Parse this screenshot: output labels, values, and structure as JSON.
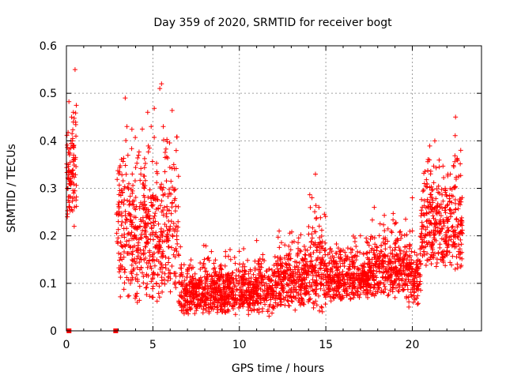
{
  "chart_data": {
    "type": "scatter",
    "title": "Day 359 of 2020, SRMTID for receiver bogt",
    "xlabel": "GPS time / hours",
    "ylabel": "SRMTID / TECUs",
    "xlim": [
      0,
      24
    ],
    "ylim": [
      0,
      0.6
    ],
    "xticks": [
      0,
      5,
      10,
      15,
      20
    ],
    "yticks": [
      0,
      0.1,
      0.2,
      0.3,
      0.4,
      0.5,
      0.6
    ],
    "xtick_labels": [
      "0",
      "5",
      "10",
      "15",
      "20"
    ],
    "ytick_labels": [
      "0",
      "0.1",
      "0.2",
      "0.3",
      "0.4",
      "0.5",
      "0.6"
    ],
    "grid": true,
    "marker": "+",
    "color": "#ff0000",
    "zero_markers": [
      {
        "x": 0.15,
        "y": 0
      },
      {
        "x": 2.85,
        "y": 0
      }
    ],
    "series": [
      {
        "name": "SRMTID",
        "envelope_segments": [
          {
            "x_start": 0.0,
            "x_end": 0.6,
            "low": 0.22,
            "high": 0.55
          },
          {
            "x_start": 2.9,
            "x_end": 6.5,
            "low": 0.06,
            "high": 0.52
          },
          {
            "x_start": 6.5,
            "x_end": 12.0,
            "low": 0.03,
            "high": 0.19
          },
          {
            "x_start": 12.0,
            "x_end": 14.0,
            "low": 0.04,
            "high": 0.24
          },
          {
            "x_start": 14.0,
            "x_end": 15.0,
            "low": 0.04,
            "high": 0.33
          },
          {
            "x_start": 15.0,
            "x_end": 17.5,
            "low": 0.06,
            "high": 0.22
          },
          {
            "x_start": 17.5,
            "x_end": 19.5,
            "low": 0.07,
            "high": 0.26
          },
          {
            "x_start": 19.5,
            "x_end": 20.5,
            "low": 0.05,
            "high": 0.28
          },
          {
            "x_start": 20.5,
            "x_end": 22.9,
            "low": 0.12,
            "high": 0.45
          }
        ],
        "sample_points": [
          [
            0.05,
            0.3
          ],
          [
            0.1,
            0.35
          ],
          [
            0.15,
            0.26
          ],
          [
            0.2,
            0.31
          ],
          [
            0.3,
            0.45
          ],
          [
            0.35,
            0.4
          ],
          [
            0.4,
            0.46
          ],
          [
            0.45,
            0.22
          ],
          [
            0.5,
            0.55
          ],
          [
            0.55,
            0.41
          ],
          [
            3.0,
            0.23
          ],
          [
            3.2,
            0.2
          ],
          [
            3.4,
            0.49
          ],
          [
            3.5,
            0.43
          ],
          [
            3.7,
            0.1
          ],
          [
            3.9,
            0.13
          ],
          [
            4.1,
            0.06
          ],
          [
            4.3,
            0.33
          ],
          [
            4.5,
            0.3
          ],
          [
            4.7,
            0.46
          ],
          [
            4.9,
            0.43
          ],
          [
            5.0,
            0.15
          ],
          [
            5.2,
            0.1
          ],
          [
            5.4,
            0.51
          ],
          [
            5.5,
            0.52
          ],
          [
            5.6,
            0.43
          ],
          [
            5.8,
            0.24
          ],
          [
            6.0,
            0.12
          ],
          [
            6.2,
            0.16
          ],
          [
            6.4,
            0.21
          ],
          [
            7.0,
            0.12
          ],
          [
            7.5,
            0.05
          ],
          [
            8.0,
            0.09
          ],
          [
            8.5,
            0.13
          ],
          [
            9.0,
            0.04
          ],
          [
            9.5,
            0.15
          ],
          [
            10.0,
            0.1
          ],
          [
            10.5,
            0.05
          ],
          [
            11.0,
            0.19
          ],
          [
            11.5,
            0.07
          ],
          [
            12.0,
            0.12
          ],
          [
            12.3,
            0.21
          ],
          [
            12.8,
            0.15
          ],
          [
            13.2,
            0.1
          ],
          [
            13.6,
            0.06
          ],
          [
            14.2,
            0.28
          ],
          [
            14.4,
            0.33
          ],
          [
            14.6,
            0.26
          ],
          [
            14.8,
            0.04
          ],
          [
            15.0,
            0.13
          ],
          [
            15.5,
            0.09
          ],
          [
            16.0,
            0.17
          ],
          [
            16.5,
            0.12
          ],
          [
            17.0,
            0.2
          ],
          [
            17.4,
            0.08
          ],
          [
            17.8,
            0.26
          ],
          [
            18.2,
            0.18
          ],
          [
            18.6,
            0.14
          ],
          [
            19.0,
            0.07
          ],
          [
            19.4,
            0.12
          ],
          [
            19.8,
            0.05
          ],
          [
            20.0,
            0.28
          ],
          [
            20.3,
            0.14
          ],
          [
            20.7,
            0.31
          ],
          [
            21.0,
            0.27
          ],
          [
            21.3,
            0.4
          ],
          [
            21.6,
            0.26
          ],
          [
            21.9,
            0.3
          ],
          [
            22.2,
            0.33
          ],
          [
            22.5,
            0.45
          ],
          [
            22.8,
            0.38
          ]
        ]
      }
    ]
  }
}
